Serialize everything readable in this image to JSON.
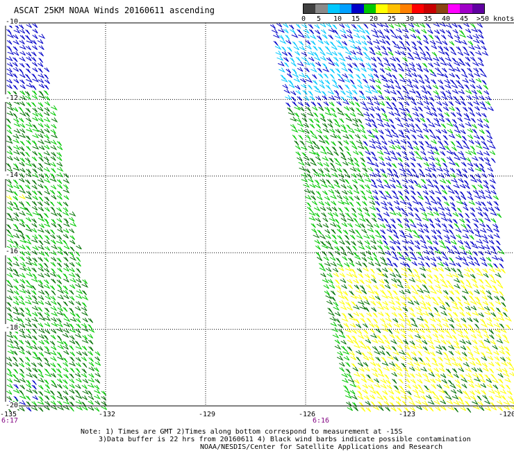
{
  "title": "ASCAT 25KM NOAA Winds 20160611 ascending",
  "legend": {
    "labels": [
      "0",
      "5",
      "10",
      "15",
      "20",
      "25",
      "30",
      "35",
      "40",
      "45",
      ">50 knots"
    ],
    "colors": [
      "#404040",
      "#8a8a8a",
      "#00c8ff",
      "#00a0ff",
      "#0000c8",
      "#00c800",
      "#ffff00",
      "#ffc000",
      "#ff8000",
      "#ff0000",
      "#c80000",
      "#8b4513",
      "#ff00ff",
      "#a000c8",
      "#6000a0"
    ]
  },
  "axes": {
    "y_labels": [
      "-10",
      "-12",
      "-14",
      "-16",
      "-18",
      "-20"
    ],
    "x_labels": [
      "-135",
      "-132",
      "-129",
      "-126",
      "-123",
      "-120"
    ]
  },
  "pass_times": {
    "left": "6:17",
    "right": "6:16"
  },
  "notes": {
    "line1": "Note: 1) Times are GMT 2)Times along bottom correspond to measurement at -15S",
    "line2": "3)Data buffer is 22 hrs from 20160611 4) Black wind barbs indicate possible contamination",
    "line3": "NOAA/NESDIS/Center for Satellite Applications and Research"
  },
  "swaths": [
    {
      "name": "west-pass",
      "lon_range": [
        -135,
        -131.9
      ],
      "lat_range": [
        -10,
        -20
      ]
    },
    {
      "name": "east-pass",
      "lon_range": [
        -127.2,
        -120
      ],
      "lat_range": [
        -10,
        -20
      ]
    }
  ],
  "wind_classes": {
    "light_cyan": "#00c8ff",
    "blue": "#0000c8",
    "green": "#00c800",
    "dark_green": "#007000",
    "yellow": "#ffff00"
  }
}
